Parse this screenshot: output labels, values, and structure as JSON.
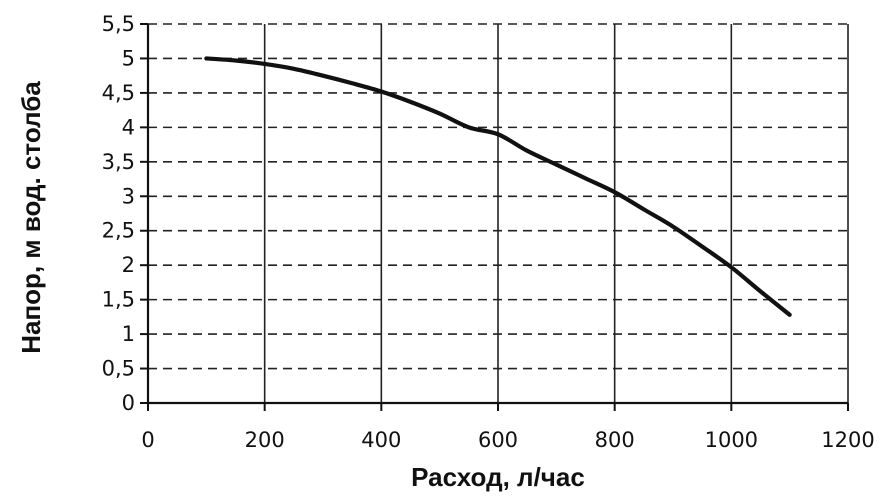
{
  "chart_data": {
    "type": "line",
    "title": "",
    "xlabel": "Расход, л/час",
    "ylabel": "Напор, м вод. столба",
    "xlim": [
      0,
      1200
    ],
    "ylim": [
      0,
      5.5
    ],
    "x_ticks": [
      0,
      200,
      400,
      600,
      800,
      1000,
      1200
    ],
    "x_tick_labels": [
      "0",
      "200",
      "400",
      "600",
      "800",
      "1000",
      "1200"
    ],
    "y_ticks": [
      0,
      0.5,
      1,
      1.5,
      2,
      2.5,
      3,
      3.5,
      4,
      4.5,
      5,
      5.5
    ],
    "y_tick_labels": [
      "0",
      "0,5",
      "1",
      "1,5",
      "2",
      "2,5",
      "3",
      "3,5",
      "4",
      "4,5",
      "5",
      "5,5"
    ],
    "grid": {
      "vertical": "solid",
      "horizontal": "dashed"
    },
    "legend": "none",
    "colors": {
      "line": "#111111",
      "grid": "#222222",
      "axis": "#111111"
    },
    "series": [
      {
        "x": [
          100,
          150,
          200,
          250,
          300,
          350,
          400,
          450,
          500,
          550,
          600,
          650,
          700,
          750,
          800,
          850,
          900,
          950,
          1000,
          1050,
          1100
        ],
        "y": [
          5.0,
          4.97,
          4.92,
          4.85,
          4.75,
          4.64,
          4.52,
          4.37,
          4.2,
          4.0,
          3.9,
          3.66,
          3.46,
          3.26,
          3.06,
          2.81,
          2.56,
          2.27,
          1.97,
          1.62,
          1.28
        ]
      }
    ]
  }
}
